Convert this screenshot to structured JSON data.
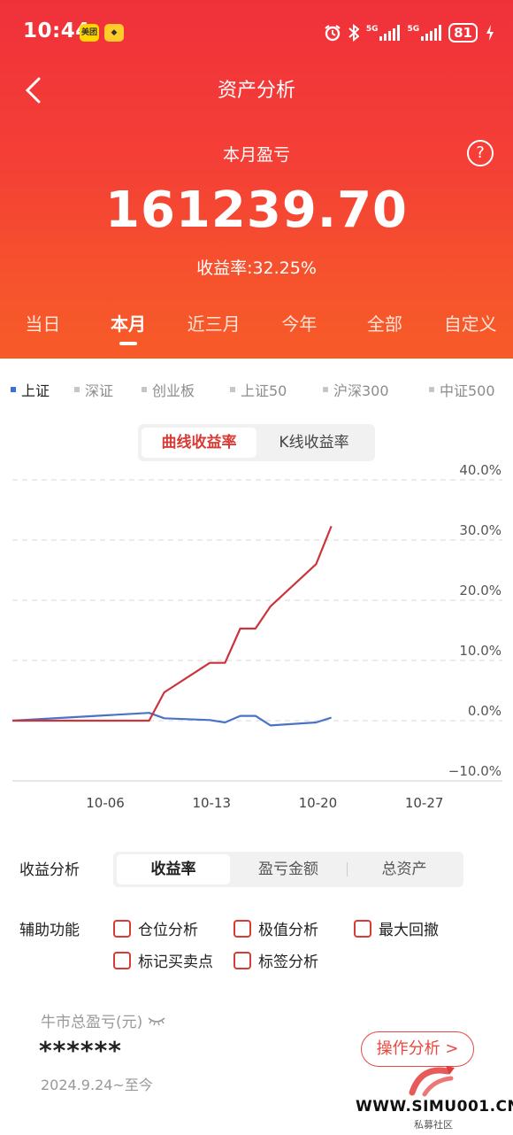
{
  "status_bar": {
    "time": "10:44",
    "app_badges": [
      "美团",
      "◆"
    ],
    "network_1": "5G",
    "network_2": "5G",
    "battery": "81"
  },
  "nav": {
    "title": "资产分析"
  },
  "summary": {
    "label": "本月盈亏",
    "amount": "161239.70",
    "rate_text": "收益率:32.25%"
  },
  "periods": [
    {
      "label": "当日",
      "active": false
    },
    {
      "label": "本月",
      "active": true
    },
    {
      "label": "近三月",
      "active": false
    },
    {
      "label": "今年",
      "active": false
    },
    {
      "label": "全部",
      "active": false
    },
    {
      "label": "自定义",
      "active": false
    }
  ],
  "indices": [
    {
      "label": "上证",
      "active": true
    },
    {
      "label": "深证",
      "active": false
    },
    {
      "label": "创业板",
      "active": false
    },
    {
      "label": "上证50",
      "active": false
    },
    {
      "label": "沪深300",
      "active": false
    },
    {
      "label": "中证500",
      "active": false
    }
  ],
  "chart_toggle": {
    "option_1": "曲线收益率",
    "option_2": "K线收益率"
  },
  "chart_data": {
    "type": "line",
    "y_tick_labels": [
      "40.0%",
      "30.0%",
      "20.0%",
      "10.0%",
      "0.0%",
      "−10.0%"
    ],
    "y_ticks": [
      40,
      30,
      20,
      10,
      0,
      -10
    ],
    "ylim": [
      -10,
      40
    ],
    "x_tick_labels": [
      "10-06",
      "10-13",
      "10-20",
      "10-27"
    ],
    "x_ticks": [
      6,
      13,
      20,
      27
    ],
    "xlim": [
      0,
      29
    ],
    "grid": true,
    "colors": {
      "portfolio": "#c9353a",
      "index": "#4a73c8",
      "grid": "#d8d8d8"
    },
    "series": [
      {
        "key": "portfolio",
        "points": [
          [
            0,
            0
          ],
          [
            9,
            0
          ],
          [
            10,
            4.7
          ],
          [
            13,
            9.6
          ],
          [
            14,
            9.6
          ],
          [
            15,
            15.3
          ],
          [
            16,
            15.3
          ],
          [
            17,
            19
          ],
          [
            20,
            26
          ],
          [
            21,
            32.3
          ]
        ]
      },
      {
        "key": "index",
        "points": [
          [
            0,
            0
          ],
          [
            9,
            1.3
          ],
          [
            10,
            0.4
          ],
          [
            13,
            0.1
          ],
          [
            14,
            -0.3
          ],
          [
            15,
            0.8
          ],
          [
            16,
            0.8
          ],
          [
            17,
            -0.8
          ],
          [
            20,
            -0.3
          ],
          [
            21,
            0.5
          ]
        ]
      }
    ]
  },
  "analysis": {
    "label": "收益分析",
    "tabs": [
      {
        "label": "收益率",
        "active": true
      },
      {
        "label": "盈亏金额",
        "active": false
      },
      {
        "label": "总资产",
        "active": false
      }
    ]
  },
  "aux": {
    "label": "辅助功能",
    "options": [
      "仓位分析",
      "极值分析",
      "最大回撤",
      "标记买卖点",
      "标签分析"
    ]
  },
  "bull": {
    "label": "牛市总盈亏(元)",
    "masked_value": "******",
    "date_range": "2024.9.24~至今",
    "button": "操作分析 >"
  },
  "watermark": {
    "url": "WWW.SIMU001.CN",
    "sub": "私募社区"
  }
}
